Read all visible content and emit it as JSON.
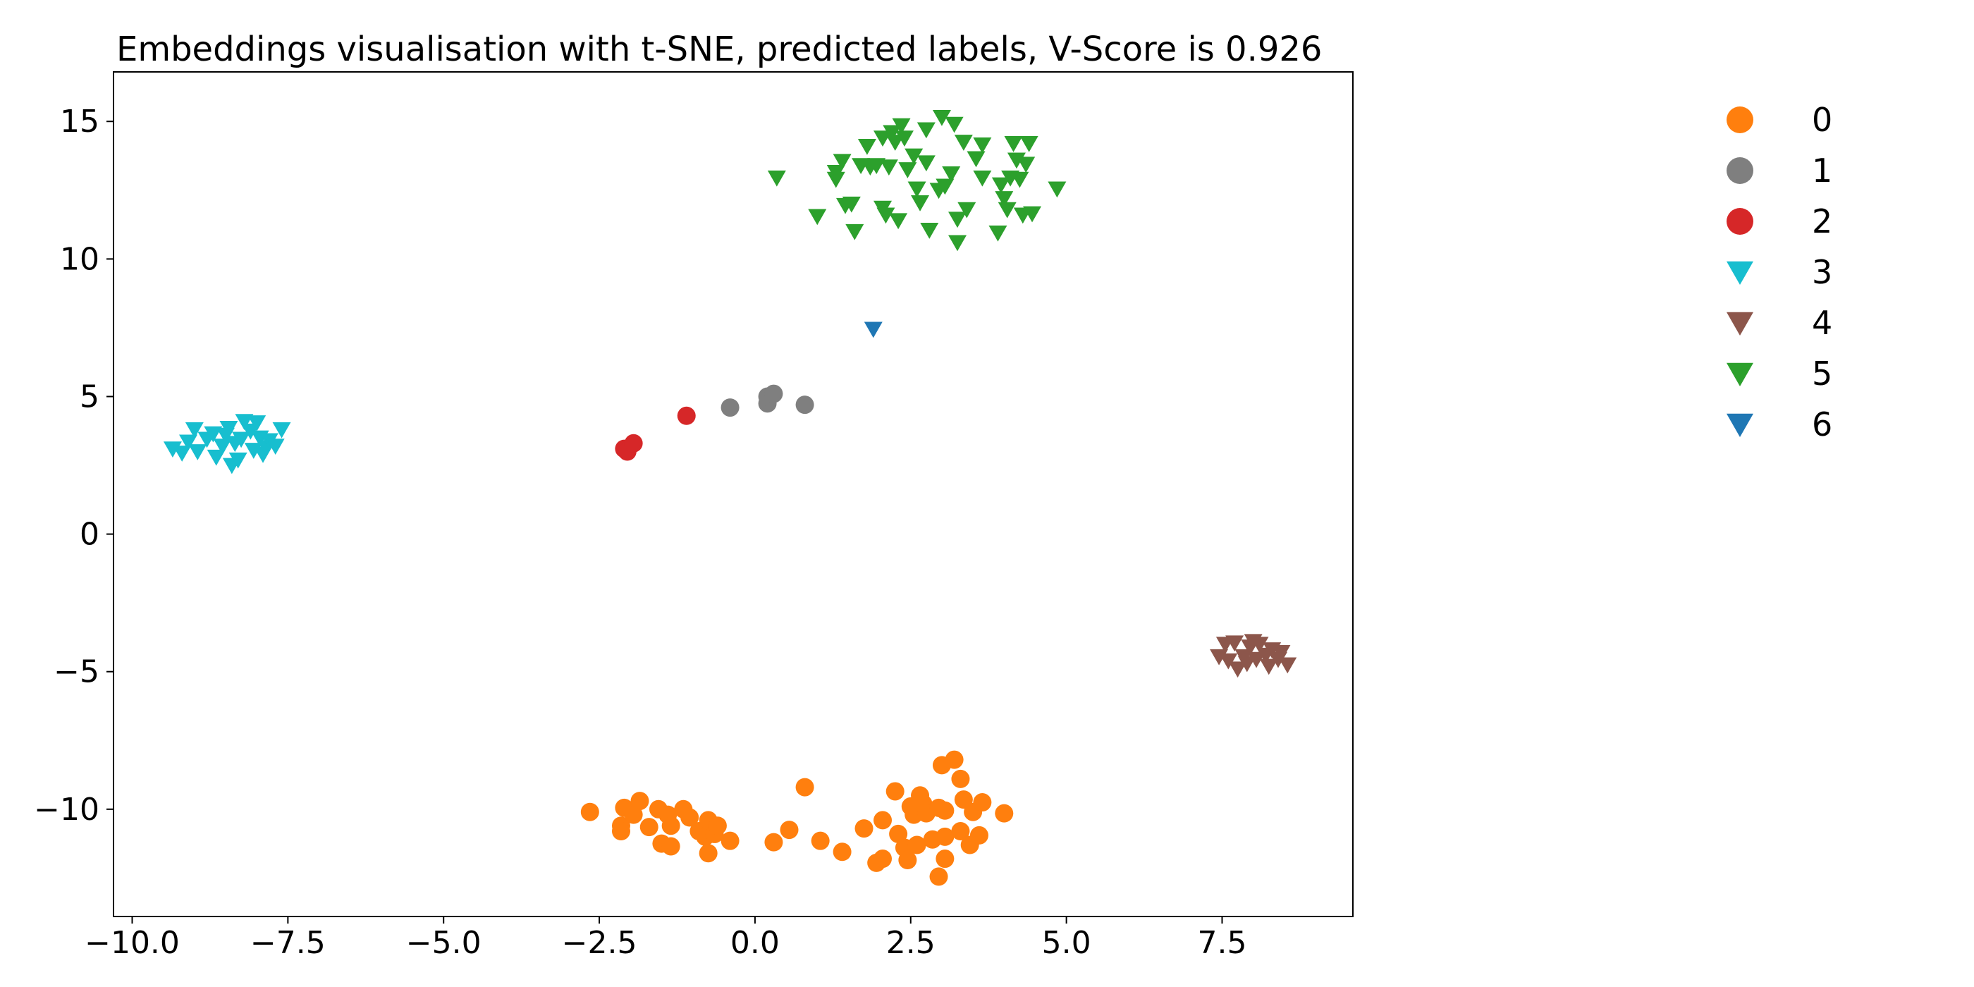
{
  "chart_data": {
    "type": "scatter",
    "title": "Embeddings visualisation with t-SNE, predicted labels, V-Score is 0.926",
    "xlabel": "",
    "ylabel": "",
    "xlim": [
      -10.3,
      9.6
    ],
    "ylim": [
      -13.9,
      16.8
    ],
    "xticks": [
      {
        "value": -10.0,
        "label": "−10.0"
      },
      {
        "value": -7.5,
        "label": "−7.5"
      },
      {
        "value": -5.0,
        "label": "−5.0"
      },
      {
        "value": -2.5,
        "label": "−2.5"
      },
      {
        "value": 0.0,
        "label": "0.0"
      },
      {
        "value": 2.5,
        "label": "2.5"
      },
      {
        "value": 5.0,
        "label": "5.0"
      },
      {
        "value": 7.5,
        "label": "7.5"
      }
    ],
    "yticks": [
      {
        "value": 15,
        "label": "15"
      },
      {
        "value": 10,
        "label": "10"
      },
      {
        "value": 5,
        "label": "5"
      },
      {
        "value": 0,
        "label": "0"
      },
      {
        "value": -5,
        "label": "−5"
      },
      {
        "value": -10,
        "label": "−10"
      }
    ],
    "grid": false,
    "legend_position": "right",
    "series": [
      {
        "name": "0",
        "marker": "circle",
        "color": "#ff7f0e",
        "points": [
          [
            -2.65,
            -10.1
          ],
          [
            -2.15,
            -10.6
          ],
          [
            -2.15,
            -10.8
          ],
          [
            -2.1,
            -9.95
          ],
          [
            -1.95,
            -10.2
          ],
          [
            -1.85,
            -9.7
          ],
          [
            -1.7,
            -10.65
          ],
          [
            -1.55,
            -10.0
          ],
          [
            -1.5,
            -11.25
          ],
          [
            -1.4,
            -10.2
          ],
          [
            -1.35,
            -10.6
          ],
          [
            -1.35,
            -11.35
          ],
          [
            -1.15,
            -10.0
          ],
          [
            -1.05,
            -10.3
          ],
          [
            -0.9,
            -10.8
          ],
          [
            -0.8,
            -11.0
          ],
          [
            -0.75,
            -10.4
          ],
          [
            -0.75,
            -11.6
          ],
          [
            -0.65,
            -10.9
          ],
          [
            -0.6,
            -10.6
          ],
          [
            -0.4,
            -11.15
          ],
          [
            0.3,
            -11.2
          ],
          [
            0.55,
            -10.75
          ],
          [
            0.8,
            -9.2
          ],
          [
            1.05,
            -11.15
          ],
          [
            1.4,
            -11.55
          ],
          [
            1.75,
            -10.7
          ],
          [
            1.95,
            -11.95
          ],
          [
            2.05,
            -10.4
          ],
          [
            2.05,
            -11.8
          ],
          [
            2.25,
            -9.35
          ],
          [
            2.3,
            -10.9
          ],
          [
            2.4,
            -11.4
          ],
          [
            2.45,
            -11.85
          ],
          [
            2.5,
            -9.9
          ],
          [
            2.55,
            -10.2
          ],
          [
            2.6,
            -11.3
          ],
          [
            2.65,
            -9.5
          ],
          [
            2.7,
            -9.8
          ],
          [
            2.75,
            -10.15
          ],
          [
            2.85,
            -11.1
          ],
          [
            2.95,
            -9.95
          ],
          [
            2.95,
            -12.45
          ],
          [
            3.0,
            -8.4
          ],
          [
            3.05,
            -10.05
          ],
          [
            3.05,
            -11.0
          ],
          [
            3.05,
            -11.8
          ],
          [
            3.2,
            -8.2
          ],
          [
            3.3,
            -8.9
          ],
          [
            3.3,
            -10.8
          ],
          [
            3.35,
            -9.65
          ],
          [
            3.45,
            -11.3
          ],
          [
            3.5,
            -10.1
          ],
          [
            3.6,
            -10.95
          ],
          [
            3.65,
            -9.75
          ],
          [
            4.0,
            -10.15
          ]
        ]
      },
      {
        "name": "1",
        "marker": "circle",
        "color": "#7f7f7f",
        "points": [
          [
            -0.4,
            4.6
          ],
          [
            0.2,
            4.75
          ],
          [
            0.2,
            5.0
          ],
          [
            0.3,
            5.1
          ],
          [
            0.8,
            4.7
          ]
        ]
      },
      {
        "name": "2",
        "marker": "circle",
        "color": "#d62728",
        "points": [
          [
            -2.1,
            3.1
          ],
          [
            -2.05,
            3.0
          ],
          [
            -1.95,
            3.3
          ],
          [
            -1.1,
            4.3
          ]
        ]
      },
      {
        "name": "3",
        "marker": "triangle-down",
        "color": "#17becf",
        "points": [
          [
            -9.35,
            3.1
          ],
          [
            -9.2,
            2.95
          ],
          [
            -9.1,
            3.35
          ],
          [
            -9.0,
            3.8
          ],
          [
            -8.95,
            3.0
          ],
          [
            -8.8,
            3.45
          ],
          [
            -8.7,
            3.65
          ],
          [
            -8.65,
            2.8
          ],
          [
            -8.55,
            3.2
          ],
          [
            -8.5,
            3.6
          ],
          [
            -8.45,
            3.85
          ],
          [
            -8.4,
            2.5
          ],
          [
            -8.35,
            3.3
          ],
          [
            -8.3,
            2.7
          ],
          [
            -8.25,
            3.45
          ],
          [
            -8.2,
            4.1
          ],
          [
            -8.1,
            3.75
          ],
          [
            -8.05,
            3.05
          ],
          [
            -8.0,
            4.05
          ],
          [
            -7.95,
            3.5
          ],
          [
            -7.9,
            2.9
          ],
          [
            -7.85,
            3.15
          ],
          [
            -7.8,
            3.4
          ],
          [
            -7.7,
            3.2
          ],
          [
            -7.6,
            3.8
          ]
        ]
      },
      {
        "name": "4",
        "marker": "triangle-down",
        "color": "#8c564b",
        "points": [
          [
            7.45,
            -4.45
          ],
          [
            7.55,
            -4.0
          ],
          [
            7.6,
            -4.6
          ],
          [
            7.7,
            -3.95
          ],
          [
            7.75,
            -4.9
          ],
          [
            7.85,
            -4.45
          ],
          [
            7.9,
            -4.7
          ],
          [
            7.95,
            -4.1
          ],
          [
            8.0,
            -3.9
          ],
          [
            8.05,
            -4.55
          ],
          [
            8.1,
            -4.0
          ],
          [
            8.2,
            -4.4
          ],
          [
            8.25,
            -4.8
          ],
          [
            8.3,
            -4.2
          ],
          [
            8.4,
            -4.55
          ],
          [
            8.45,
            -4.3
          ],
          [
            8.55,
            -4.75
          ]
        ]
      },
      {
        "name": "5",
        "marker": "triangle-down",
        "color": "#2ca02c",
        "points": [
          [
            0.35,
            12.95
          ],
          [
            1.0,
            11.55
          ],
          [
            1.3,
            13.15
          ],
          [
            1.3,
            12.9
          ],
          [
            1.4,
            13.55
          ],
          [
            1.45,
            11.95
          ],
          [
            1.55,
            12.0
          ],
          [
            1.6,
            11.0
          ],
          [
            1.7,
            13.4
          ],
          [
            1.8,
            14.1
          ],
          [
            1.85,
            13.35
          ],
          [
            1.95,
            13.4
          ],
          [
            2.05,
            14.4
          ],
          [
            2.05,
            11.85
          ],
          [
            2.1,
            11.6
          ],
          [
            2.15,
            13.35
          ],
          [
            2.2,
            14.6
          ],
          [
            2.25,
            14.25
          ],
          [
            2.3,
            11.4
          ],
          [
            2.35,
            14.85
          ],
          [
            2.4,
            14.4
          ],
          [
            2.45,
            13.25
          ],
          [
            2.55,
            13.75
          ],
          [
            2.6,
            12.55
          ],
          [
            2.65,
            12.05
          ],
          [
            2.75,
            13.5
          ],
          [
            2.75,
            14.7
          ],
          [
            2.8,
            11.05
          ],
          [
            2.95,
            12.5
          ],
          [
            3.0,
            15.15
          ],
          [
            3.05,
            12.65
          ],
          [
            3.15,
            13.1
          ],
          [
            3.2,
            14.9
          ],
          [
            3.25,
            10.6
          ],
          [
            3.25,
            11.45
          ],
          [
            3.35,
            14.25
          ],
          [
            3.4,
            11.8
          ],
          [
            3.55,
            13.65
          ],
          [
            3.65,
            14.15
          ],
          [
            3.65,
            12.95
          ],
          [
            3.9,
            10.95
          ],
          [
            3.95,
            12.7
          ],
          [
            4.0,
            12.2
          ],
          [
            4.05,
            11.8
          ],
          [
            4.1,
            12.95
          ],
          [
            4.15,
            14.2
          ],
          [
            4.2,
            13.6
          ],
          [
            4.25,
            12.9
          ],
          [
            4.3,
            11.6
          ],
          [
            4.35,
            13.45
          ],
          [
            4.4,
            14.2
          ],
          [
            4.45,
            11.65
          ],
          [
            4.85,
            12.55
          ]
        ]
      },
      {
        "name": "6",
        "marker": "triangle-down",
        "color": "#1f77b4",
        "points": [
          [
            1.9,
            7.45
          ]
        ]
      }
    ]
  }
}
